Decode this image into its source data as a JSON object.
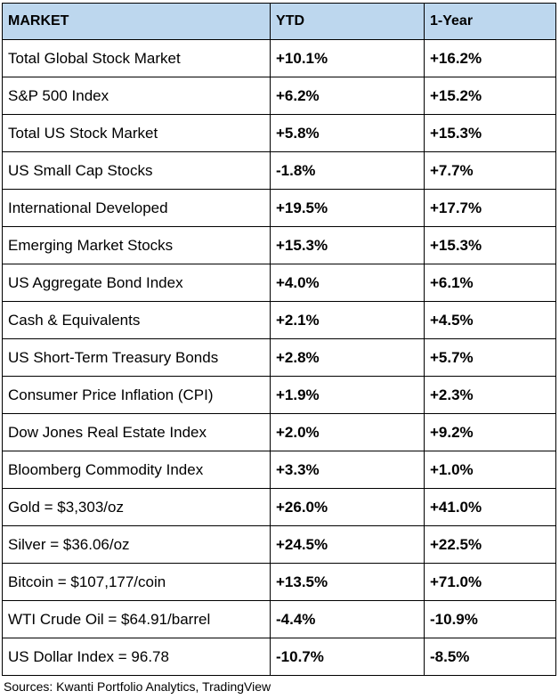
{
  "table": {
    "headers": [
      "MARKET",
      "YTD",
      "1-Year"
    ],
    "colors": {
      "positive": "#1e4d12",
      "negative": "#ee1111",
      "header_bg": "#bdd7ee"
    },
    "rows": [
      {
        "market": "Total Global Stock Market",
        "ytd": "+10.1%",
        "one_year": "+16.2%"
      },
      {
        "market": "S&P 500 Index",
        "ytd": "+6.2%",
        "one_year": "+15.2%"
      },
      {
        "market": "Total US Stock Market",
        "ytd": "+5.8%",
        "one_year": "+15.3%"
      },
      {
        "market": "US Small Cap Stocks",
        "ytd": "-1.8%",
        "one_year": "+7.7%"
      },
      {
        "market": "International Developed",
        "ytd": "+19.5%",
        "one_year": "+17.7%"
      },
      {
        "market": "Emerging Market Stocks",
        "ytd": "+15.3%",
        "one_year": "+15.3%"
      },
      {
        "market": "US Aggregate Bond Index",
        "ytd": "+4.0%",
        "one_year": "+6.1%"
      },
      {
        "market": "Cash & Equivalents",
        "ytd": "+2.1%",
        "one_year": "+4.5%"
      },
      {
        "market": "US Short-Term Treasury Bonds",
        "ytd": "+2.8%",
        "one_year": "+5.7%"
      },
      {
        "market": "Consumer Price Inflation (CPI)",
        "ytd": "+1.9%",
        "one_year": "+2.3%"
      },
      {
        "market": "Dow Jones Real Estate Index",
        "ytd": "+2.0%",
        "one_year": "+9.2%"
      },
      {
        "market": "Bloomberg Commodity Index",
        "ytd": "+3.3%",
        "one_year": "+1.0%"
      },
      {
        "market": "Gold = $3,303/oz",
        "ytd": "+26.0%",
        "one_year": "+41.0%"
      },
      {
        "market": "Silver = $36.06/oz",
        "ytd": "+24.5%",
        "one_year": "+22.5%"
      },
      {
        "market": "Bitcoin = $107,177/coin",
        "ytd": "+13.5%",
        "one_year": "+71.0%"
      },
      {
        "market": "WTI Crude Oil = $64.91/barrel",
        "ytd": "-4.4%",
        "one_year": "-10.9%"
      },
      {
        "market": "US Dollar Index = 96.78",
        "ytd": "-10.7%",
        "one_year": "-8.5%"
      }
    ]
  },
  "footer": {
    "source": "Sources: Kwanti Portfolio Analytics, TradingView"
  }
}
